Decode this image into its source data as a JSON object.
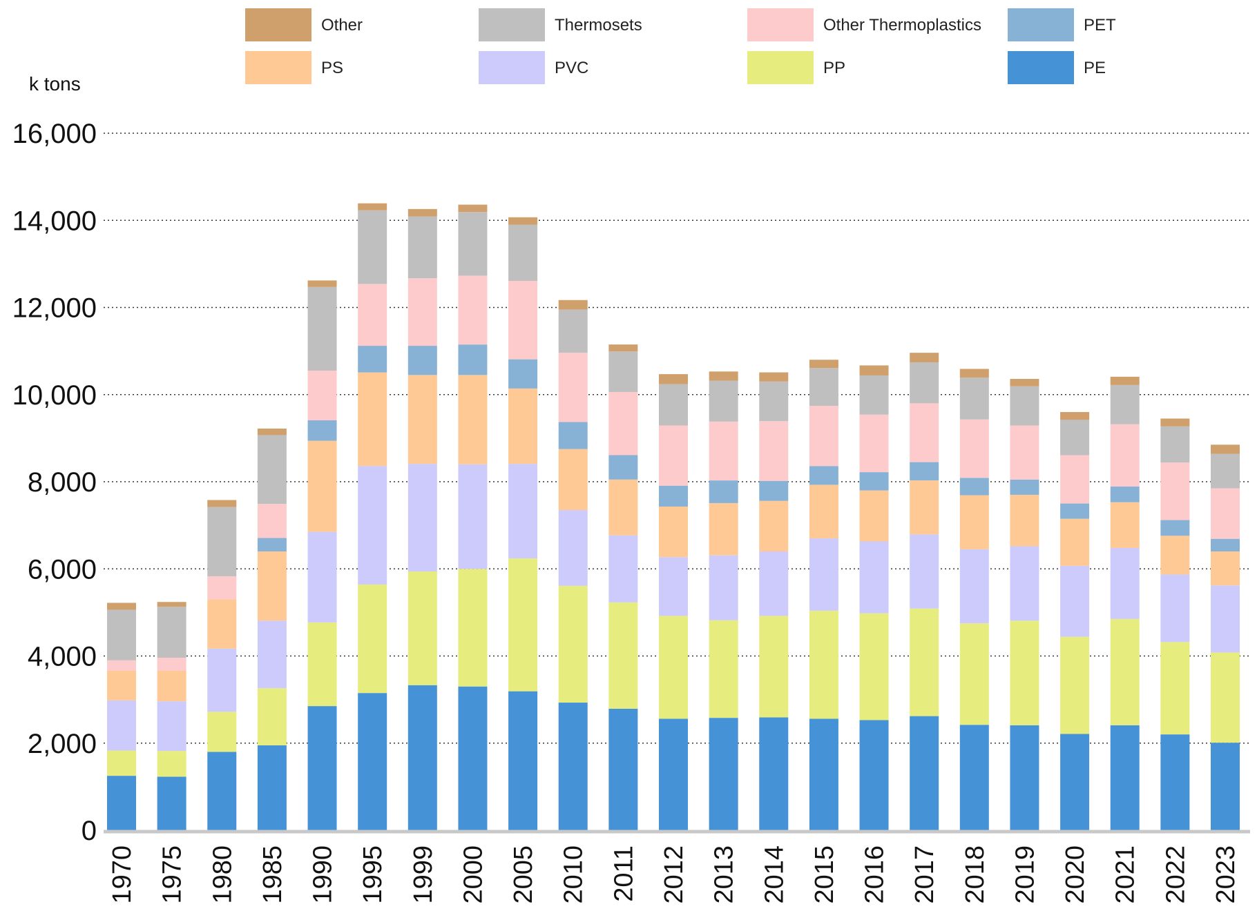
{
  "chart_data": {
    "type": "bar",
    "stacked": true,
    "title": "",
    "xlabel": "",
    "ylabel": "k tons",
    "ylim": [
      0,
      16000
    ],
    "yticks": [
      0,
      2000,
      4000,
      6000,
      8000,
      10000,
      12000,
      14000,
      16000
    ],
    "ytick_labels": [
      "0",
      "2,000",
      "4,000",
      "6,000",
      "8,000",
      "10,000",
      "12,000",
      "14,000",
      "16,000"
    ],
    "grid": "horizontal-dotted",
    "legend_position": "top",
    "categories": [
      "1970",
      "1975",
      "1980",
      "1985",
      "1990",
      "1995",
      "1999",
      "2000",
      "2005",
      "2010",
      "2011",
      "2012",
      "2013",
      "2014",
      "2015",
      "2016",
      "2017",
      "2018",
      "2019",
      "2020",
      "2021",
      "2022",
      "2023"
    ],
    "series": [
      {
        "name": "PE",
        "color": "#4592d6",
        "values": [
          1250,
          1230,
          1800,
          1950,
          2850,
          3150,
          3330,
          3300,
          3190,
          2930,
          2790,
          2560,
          2580,
          2590,
          2560,
          2530,
          2620,
          2420,
          2410,
          2210,
          2410,
          2200,
          2010
        ]
      },
      {
        "name": "PP",
        "color": "#e6ec7d",
        "values": [
          580,
          590,
          920,
          1310,
          1920,
          2490,
          2610,
          2700,
          3050,
          2680,
          2440,
          2360,
          2240,
          2330,
          2480,
          2450,
          2470,
          2330,
          2400,
          2230,
          2440,
          2120,
          2070
        ]
      },
      {
        "name": "PVC",
        "color": "#cccbfb",
        "values": [
          1150,
          1140,
          1450,
          1550,
          2080,
          2720,
          2470,
          2400,
          2170,
          1740,
          1540,
          1350,
          1490,
          1480,
          1660,
          1650,
          1700,
          1700,
          1710,
          1630,
          1630,
          1550,
          1540
        ]
      },
      {
        "name": "PS",
        "color": "#fec994",
        "values": [
          680,
          700,
          1130,
          1590,
          2090,
          2150,
          2040,
          2050,
          1730,
          1400,
          1280,
          1160,
          1200,
          1160,
          1230,
          1170,
          1240,
          1240,
          1180,
          1080,
          1050,
          890,
          780
        ]
      },
      {
        "name": "PET",
        "color": "#87b2d6",
        "values": [
          0,
          0,
          0,
          310,
          470,
          610,
          670,
          700,
          670,
          620,
          560,
          480,
          520,
          460,
          430,
          420,
          420,
          400,
          350,
          350,
          360,
          360,
          290
        ]
      },
      {
        "name": "Other Thermoplastics",
        "color": "#fecbcc",
        "values": [
          240,
          300,
          530,
          780,
          1140,
          1420,
          1550,
          1580,
          1800,
          1590,
          1450,
          1380,
          1350,
          1370,
          1380,
          1320,
          1350,
          1340,
          1240,
          1110,
          1430,
          1320,
          1160
        ]
      },
      {
        "name": "Thermosets",
        "color": "#bfbfbf",
        "values": [
          1160,
          1170,
          1590,
          1580,
          1920,
          1690,
          1420,
          1460,
          1290,
          990,
          930,
          950,
          940,
          910,
          870,
          900,
          940,
          960,
          900,
          810,
          900,
          830,
          790
        ]
      },
      {
        "name": "Other",
        "color": "#d0a06c",
        "values": [
          160,
          110,
          160,
          150,
          150,
          160,
          170,
          170,
          170,
          220,
          160,
          230,
          210,
          210,
          190,
          230,
          220,
          200,
          170,
          180,
          190,
          180,
          210
        ]
      }
    ]
  }
}
